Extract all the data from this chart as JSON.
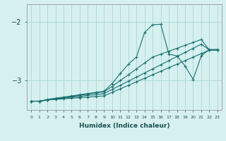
{
  "xlabel": "Humidex (Indice chaleur)",
  "bg_color": "#d6f0f0",
  "grid_color": "#b0d8d8",
  "line_color": "#1a7070",
  "x_values": [
    0,
    1,
    2,
    3,
    4,
    5,
    6,
    7,
    8,
    9,
    10,
    11,
    12,
    13,
    14,
    15,
    16,
    17,
    18,
    19,
    20,
    21,
    22,
    23
  ],
  "line1_y": [
    -3.35,
    -3.35,
    -3.32,
    -3.3,
    -3.28,
    -3.26,
    -3.24,
    -3.22,
    -3.2,
    -3.18,
    -3.05,
    -2.88,
    -2.72,
    -2.6,
    -2.18,
    -2.05,
    -2.04,
    -2.55,
    -2.58,
    -2.75,
    -2.98,
    -2.58,
    -2.47,
    -2.47
  ],
  "line2_y": [
    -3.35,
    -3.35,
    -3.33,
    -3.31,
    -3.29,
    -3.27,
    -3.25,
    -3.23,
    -3.21,
    -3.19,
    -3.1,
    -3.0,
    -2.9,
    -2.8,
    -2.7,
    -2.6,
    -2.55,
    -2.5,
    -2.45,
    -2.4,
    -2.35,
    -2.3,
    -2.48,
    -2.48
  ],
  "line3_y": [
    -3.35,
    -3.35,
    -3.33,
    -3.31,
    -3.3,
    -3.28,
    -3.27,
    -3.25,
    -3.24,
    -3.22,
    -3.15,
    -3.08,
    -3.01,
    -2.94,
    -2.87,
    -2.8,
    -2.73,
    -2.66,
    -2.59,
    -2.52,
    -2.45,
    -2.38,
    -2.48,
    -2.48
  ],
  "line4_y": [
    -3.35,
    -3.35,
    -3.33,
    -3.32,
    -3.31,
    -3.3,
    -3.29,
    -3.28,
    -3.27,
    -3.26,
    -3.2,
    -3.14,
    -3.08,
    -3.02,
    -2.96,
    -2.9,
    -2.84,
    -2.78,
    -2.72,
    -2.66,
    -2.6,
    -2.54,
    -2.48,
    -2.48
  ],
  "yticks": [
    -3,
    -2
  ],
  "ylim": [
    -3.5,
    -1.7
  ],
  "xlim": [
    -0.5,
    23.5
  ]
}
